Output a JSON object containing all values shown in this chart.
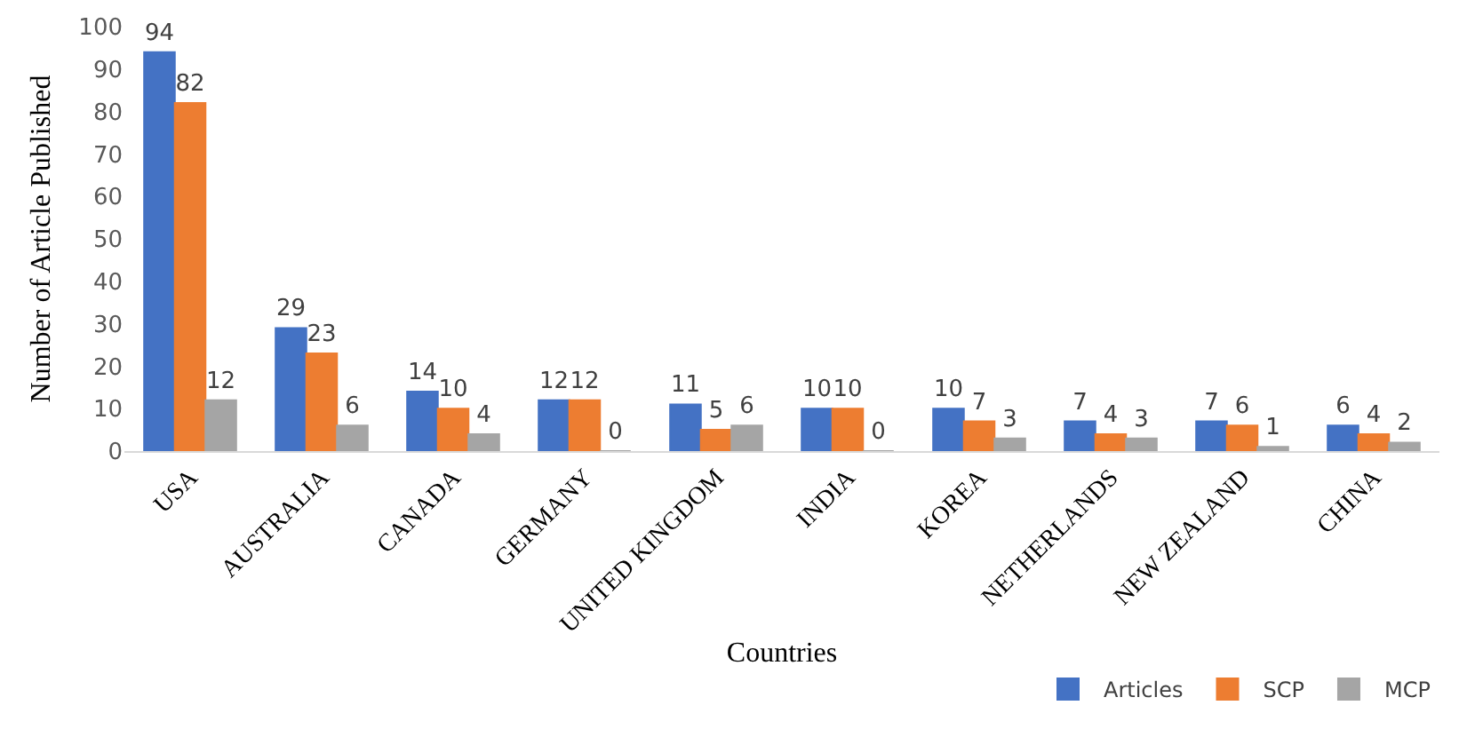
{
  "chart_data": {
    "type": "bar",
    "xlabel": "Countries",
    "ylabel": "Number of Article Published",
    "categories": [
      "USA",
      "AUSTRALIA",
      "CANADA",
      "GERMANY",
      "UNITED KINGDOM",
      "INDIA",
      "KOREA",
      "NETHERLANDS",
      "NEW ZEALAND",
      "CHINA"
    ],
    "series": [
      {
        "name": "Articles",
        "color": "#4472c4",
        "values": [
          94,
          29,
          14,
          12,
          11,
          10,
          10,
          7,
          7,
          6
        ]
      },
      {
        "name": "SCP",
        "color": "#ed7d31",
        "values": [
          82,
          23,
          10,
          12,
          5,
          10,
          7,
          4,
          6,
          4
        ]
      },
      {
        "name": "MCP",
        "color": "#a5a5a5",
        "values": [
          12,
          6,
          4,
          0,
          6,
          0,
          3,
          3,
          1,
          2
        ]
      }
    ],
    "ylim": [
      0,
      100
    ],
    "yticks": [
      0,
      10,
      20,
      30,
      40,
      50,
      60,
      70,
      80,
      90,
      100
    ],
    "legend": "bottom right",
    "data_labels": true
  }
}
